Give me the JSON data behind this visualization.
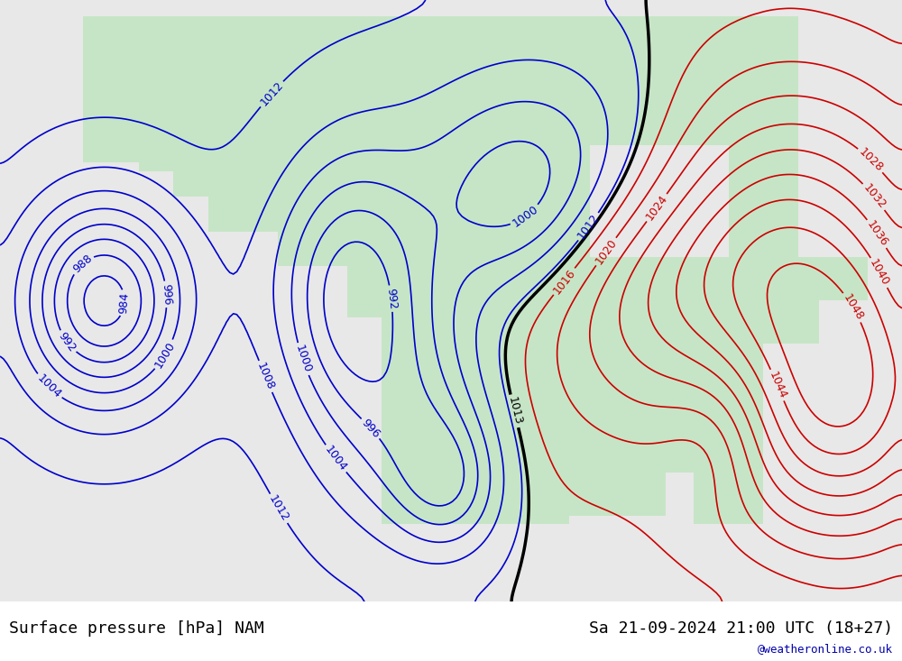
{
  "title_left": "Surface pressure [hPa] NAM",
  "title_right": "Sa 21-09-2024 21:00 UTC (18+27)",
  "watermark": "@weatheronline.co.uk",
  "background_color": "#e8e8e8",
  "land_color": "#c8e6c8",
  "ocean_color": "#e8e8e8",
  "contour_color_black": "#000000",
  "contour_color_blue": "#0000cc",
  "contour_color_red": "#cc0000",
  "label_fontsize": 9,
  "title_fontsize": 13,
  "watermark_fontsize": 9,
  "footer_bg": "#d8d8d8",
  "isobar_interval": 4,
  "pressure_min": 980,
  "pressure_max": 1048
}
